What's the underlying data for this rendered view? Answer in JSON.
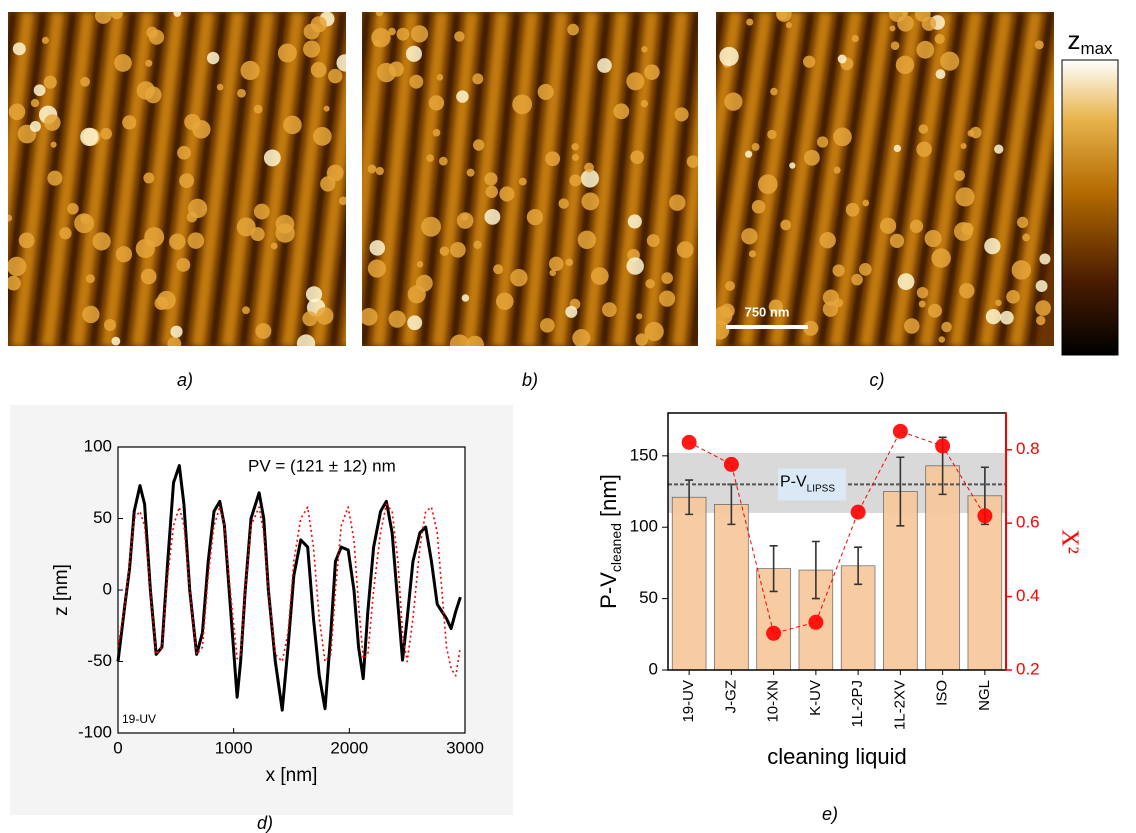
{
  "panel_labels": [
    "a)",
    "b)",
    "c)",
    "d)",
    "e)"
  ],
  "colorbar": {
    "label": "z",
    "label_sub": "max"
  },
  "scale_bar": "750 nm",
  "chart_data": [
    {
      "type": "line",
      "xlabel": "x [nm]",
      "ylabel": "z [nm]",
      "annotation": "PV = (121 ± 12) nm",
      "sample_label": "19-UV",
      "xlim": [
        0,
        3000
      ],
      "ylim": [
        -100,
        100
      ],
      "xticks": [
        0,
        1000,
        2000,
        3000
      ],
      "yticks": [
        -100,
        -50,
        0,
        50,
        100
      ],
      "x": [
        0,
        60,
        100,
        140,
        190,
        230,
        280,
        330,
        380,
        430,
        480,
        530,
        570,
        620,
        680,
        730,
        780,
        830,
        880,
        920,
        970,
        1030,
        1060,
        1100,
        1150,
        1220,
        1260,
        1300,
        1360,
        1420,
        1470,
        1520,
        1580,
        1640,
        1690,
        1740,
        1790,
        1840,
        1880,
        1930,
        1990,
        2040,
        2080,
        2120,
        2160,
        2210,
        2270,
        2320,
        2370,
        2420,
        2460,
        2500,
        2550,
        2610,
        2660,
        2710,
        2760,
        2800,
        2840,
        2880,
        2920,
        2960
      ],
      "series": [
        {
          "color": "#000000",
          "dashed": false,
          "values": [
            -50,
            -10,
            15,
            55,
            73,
            60,
            0,
            -45,
            -40,
            20,
            75,
            87,
            60,
            0,
            -45,
            -30,
            20,
            55,
            62,
            45,
            -10,
            -75,
            -50,
            0,
            50,
            68,
            50,
            0,
            -50,
            -84,
            -40,
            10,
            35,
            30,
            -20,
            -60,
            -83,
            -30,
            20,
            30,
            28,
            0,
            -40,
            -62,
            -15,
            30,
            55,
            62,
            40,
            -10,
            -49,
            -20,
            20,
            40,
            44,
            20,
            -10,
            -15,
            -20,
            -27,
            -15,
            -5
          ]
        },
        {
          "color": "#ff0000",
          "dashed": true,
          "values": [
            -40,
            -10,
            20,
            50,
            55,
            45,
            0,
            -45,
            -40,
            10,
            45,
            58,
            45,
            0,
            -45,
            -40,
            10,
            45,
            58,
            45,
            0,
            -48,
            -45,
            0,
            45,
            58,
            40,
            0,
            -45,
            -50,
            -30,
            20,
            50,
            58,
            30,
            -20,
            -50,
            -45,
            0,
            45,
            58,
            35,
            -10,
            -48,
            -45,
            0,
            40,
            60,
            55,
            20,
            -30,
            -50,
            -20,
            30,
            55,
            58,
            40,
            0,
            -40,
            -55,
            -60,
            -40
          ]
        }
      ]
    },
    {
      "type": "bar",
      "xlabel": "cleaning liquid",
      "ylabel": "P-V",
      "ylabel_sub": "cleaned",
      "ylabel_unit": " [nm]",
      "y2label": "X²",
      "reference_label": "P-V",
      "reference_label_sub": "LIPSS",
      "reference_line": 130,
      "band": [
        110,
        152
      ],
      "categories": [
        "19-UV",
        "J-GZ",
        "10-XN",
        "K-UV",
        "1L-2PJ",
        "1L-2XV",
        "ISO",
        "NGL"
      ],
      "ylim": [
        0,
        180
      ],
      "yticks": [
        0,
        50,
        100,
        150
      ],
      "y2lim": [
        0.2,
        0.9
      ],
      "y2ticks": [
        0.2,
        0.4,
        0.6,
        0.8
      ],
      "series": [
        {
          "color": "#f8c89c",
          "values": [
            121,
            116,
            71,
            70,
            73,
            125,
            143,
            122
          ],
          "errors": [
            12,
            14,
            16,
            20,
            13,
            24,
            20,
            20
          ]
        },
        {
          "color": "#ff0000",
          "axis": "y2",
          "values": [
            0.82,
            0.76,
            0.3,
            0.33,
            0.63,
            0.85,
            0.81,
            0.62
          ]
        }
      ]
    }
  ]
}
